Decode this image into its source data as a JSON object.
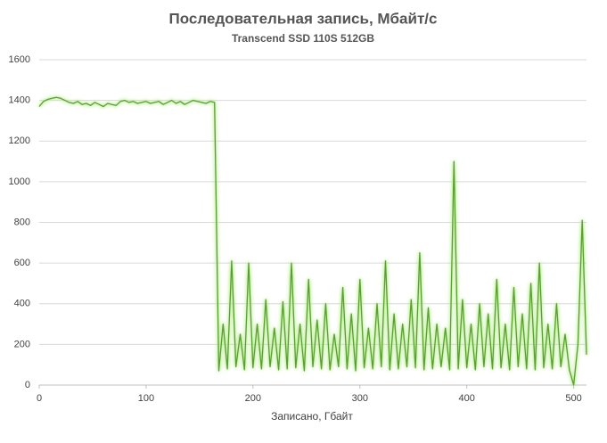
{
  "chart_data": {
    "type": "line",
    "title": "Последовательная запись, Мбайт/с",
    "subtitle": "Transcend SSD 110S  512GB",
    "x_label": "Записано, Гбайт",
    "xlim": [
      0,
      512
    ],
    "xticks": [
      0,
      100,
      200,
      300,
      400,
      500
    ],
    "ylim": [
      0,
      1600
    ],
    "yticks": [
      0,
      200,
      400,
      600,
      800,
      1000,
      1200,
      1400,
      1600
    ],
    "grid": true,
    "x": [
      0,
      4,
      8,
      12,
      16,
      20,
      24,
      28,
      32,
      36,
      40,
      44,
      48,
      52,
      56,
      60,
      64,
      68,
      72,
      76,
      80,
      84,
      88,
      92,
      96,
      100,
      104,
      108,
      112,
      116,
      120,
      124,
      128,
      132,
      136,
      140,
      144,
      148,
      152,
      156,
      160,
      164,
      168,
      172,
      176,
      180,
      184,
      188,
      192,
      196,
      200,
      204,
      208,
      212,
      216,
      220,
      224,
      228,
      232,
      236,
      240,
      244,
      248,
      252,
      256,
      260,
      264,
      268,
      272,
      276,
      280,
      284,
      288,
      292,
      296,
      300,
      304,
      308,
      312,
      316,
      320,
      324,
      328,
      332,
      336,
      340,
      344,
      348,
      352,
      356,
      360,
      364,
      368,
      372,
      376,
      380,
      384,
      388,
      392,
      396,
      400,
      404,
      408,
      412,
      416,
      420,
      424,
      428,
      432,
      436,
      440,
      444,
      448,
      452,
      456,
      460,
      464,
      468,
      472,
      476,
      480,
      484,
      488,
      492,
      496,
      500,
      504,
      508,
      512
    ],
    "series": [
      {
        "color": "#5c9e34",
        "values": [
          1370,
          1395,
          1405,
          1410,
          1415,
          1410,
          1400,
          1390,
          1385,
          1395,
          1380,
          1385,
          1375,
          1390,
          1380,
          1370,
          1385,
          1380,
          1375,
          1395,
          1400,
          1390,
          1395,
          1385,
          1390,
          1395,
          1385,
          1390,
          1395,
          1380,
          1390,
          1400,
          1385,
          1395,
          1380,
          1390,
          1400,
          1395,
          1390,
          1385,
          1395,
          1390,
          70,
          300,
          80,
          610,
          90,
          250,
          75,
          600,
          85,
          300,
          80,
          420,
          90,
          280,
          75,
          410,
          80,
          600,
          85,
          300,
          70,
          520,
          90,
          320,
          80,
          400,
          75,
          250,
          90,
          480,
          80,
          350,
          70,
          520,
          85,
          280,
          80,
          400,
          90,
          610,
          75,
          350,
          80,
          300,
          90,
          420,
          85,
          650,
          75,
          380,
          80,
          300,
          90,
          280,
          75,
          1100,
          80,
          420,
          85,
          300,
          75,
          400,
          90,
          350,
          80,
          520,
          85,
          300,
          75,
          480,
          90,
          350,
          80,
          500,
          75,
          600,
          85,
          300,
          80,
          400,
          90,
          250,
          75,
          0,
          200,
          810,
          150
        ]
      }
    ]
  }
}
